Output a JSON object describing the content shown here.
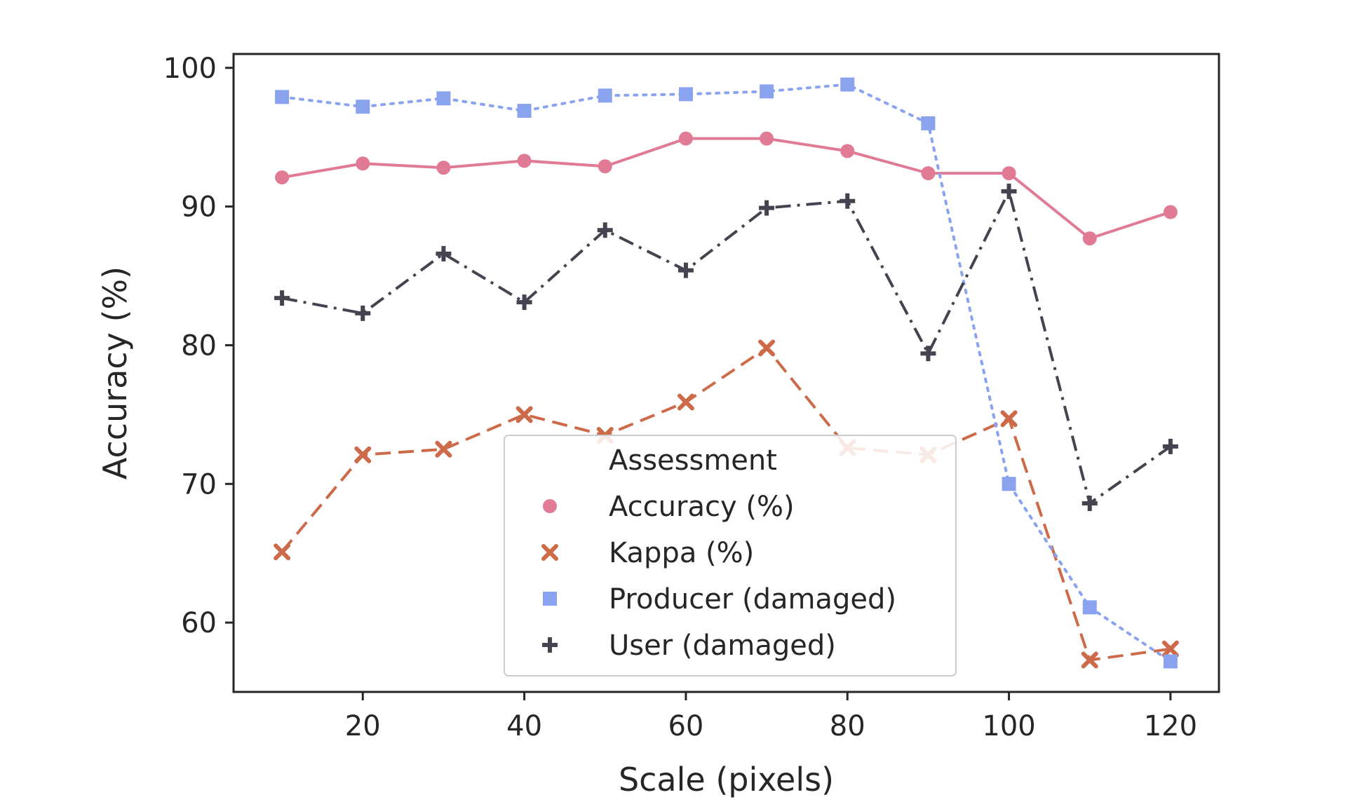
{
  "chart_data": {
    "type": "line",
    "xlabel": "Scale (pixels)",
    "ylabel": "Accuracy (%)",
    "xlim": [
      4,
      126
    ],
    "ylim": [
      55,
      101
    ],
    "xticks": [
      20,
      40,
      60,
      80,
      100,
      120
    ],
    "yticks": [
      60,
      70,
      80,
      90,
      100
    ],
    "grid": false,
    "legend_title": "Assessment",
    "legend_position": "lower-center",
    "x": [
      10,
      20,
      30,
      40,
      50,
      60,
      70,
      80,
      90,
      100,
      110,
      120
    ],
    "series": [
      {
        "name": "Accuracy (%)",
        "marker": "circle",
        "line_style": "solid",
        "color": "#e07a95",
        "values": [
          92.1,
          93.1,
          92.8,
          93.3,
          92.9,
          94.9,
          94.9,
          94.0,
          92.4,
          92.4,
          87.7,
          89.6
        ]
      },
      {
        "name": "Kappa (%)",
        "marker": "x",
        "line_style": "dashed",
        "color": "#cd6a49",
        "values": [
          65.1,
          72.1,
          72.5,
          75.0,
          73.5,
          75.9,
          79.8,
          72.6,
          72.1,
          74.7,
          57.3,
          58.1
        ]
      },
      {
        "name": "Producer (damaged)",
        "marker": "square",
        "line_style": "dotted",
        "color": "#8aa3ee",
        "values": [
          97.9,
          97.2,
          97.8,
          96.9,
          98.0,
          98.1,
          98.3,
          98.8,
          96.0,
          70.0,
          61.1,
          57.2
        ]
      },
      {
        "name": "User (damaged)",
        "marker": "plus",
        "line_style": "dashdot",
        "color": "#45434f",
        "values": [
          83.4,
          82.3,
          86.6,
          83.1,
          88.3,
          85.4,
          89.9,
          90.4,
          79.4,
          91.1,
          68.6,
          72.7
        ]
      }
    ]
  }
}
